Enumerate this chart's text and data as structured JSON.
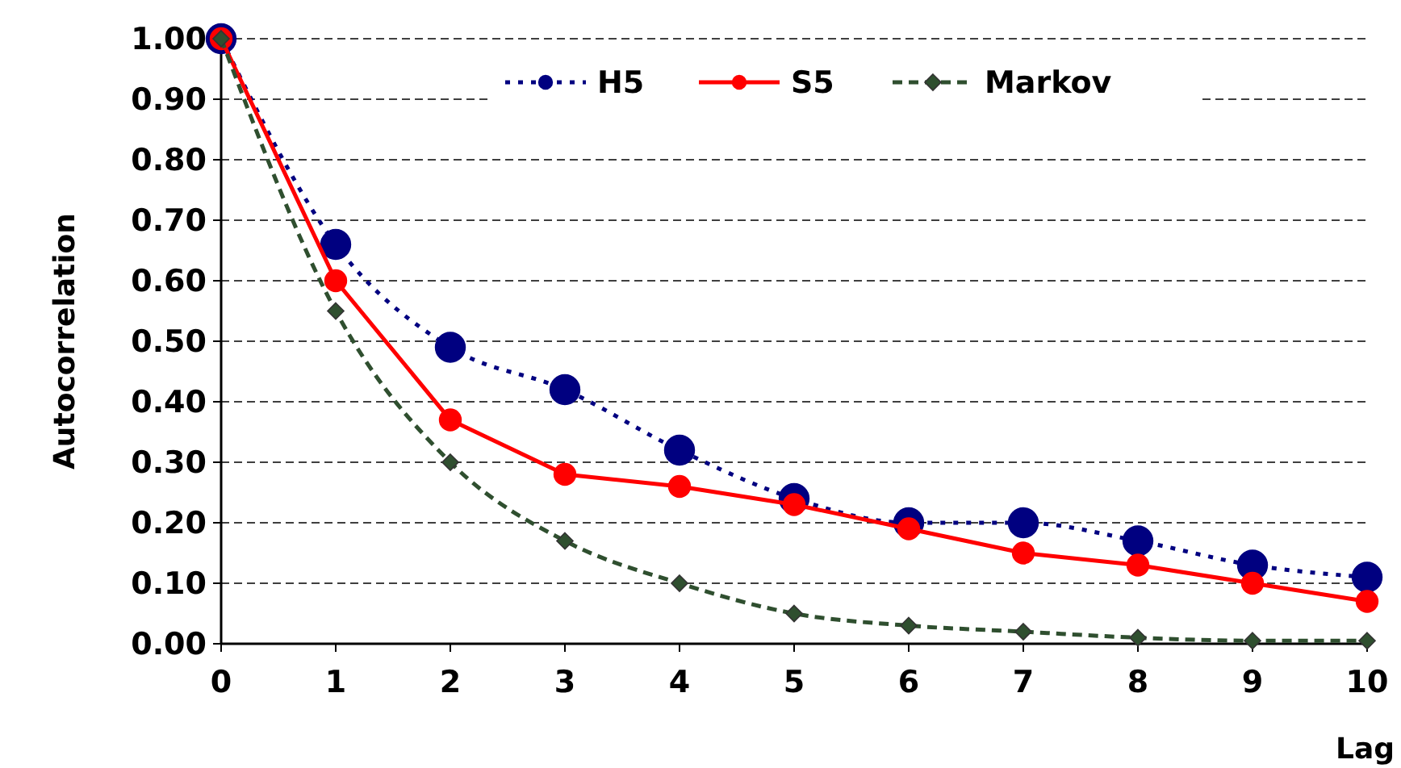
{
  "chart_data": {
    "type": "line",
    "xlabel": "Lag",
    "ylabel": "Autocorrelation",
    "x": [
      0,
      1,
      2,
      3,
      4,
      5,
      6,
      7,
      8,
      9,
      10
    ],
    "xlim": [
      0,
      10
    ],
    "xticks": [
      0,
      1,
      2,
      3,
      4,
      5,
      6,
      7,
      8,
      9,
      10
    ],
    "ylim": [
      0,
      1
    ],
    "yticks": [
      {
        "value": 0,
        "label": "0.00"
      },
      {
        "value": 0.1,
        "label": "0.10"
      },
      {
        "value": 0.2,
        "label": "0.20"
      },
      {
        "value": 0.3,
        "label": "0.30"
      },
      {
        "value": 0.4,
        "label": "0.40"
      },
      {
        "value": 0.5,
        "label": "0.50"
      },
      {
        "value": 0.6,
        "label": "0.60"
      },
      {
        "value": 0.7,
        "label": "0.70"
      },
      {
        "value": 0.8,
        "label": "0.80"
      },
      {
        "value": 0.9,
        "label": "0.90"
      },
      {
        "value": 1,
        "label": "1.00"
      }
    ],
    "grid": "y",
    "legend": "top",
    "series": [
      {
        "name": "H5",
        "color": "#000080",
        "marker": "circle",
        "line_style": "dotted",
        "values": [
          1,
          0.66,
          0.49,
          0.42,
          0.32,
          0.24,
          0.2,
          0.2,
          0.17,
          0.13,
          0.11
        ]
      },
      {
        "name": "S5",
        "color": "#ff0000",
        "marker": "circle",
        "line_style": "solid",
        "values": [
          1,
          0.6,
          0.37,
          0.28,
          0.26,
          0.23,
          0.19,
          0.15,
          0.13,
          0.1,
          0.07
        ]
      },
      {
        "name": "Markov",
        "color": "#2f4f2f",
        "marker": "diamond",
        "line_style": "dashed",
        "values": [
          1,
          0.55,
          0.3,
          0.17,
          0.1,
          0.05,
          0.03,
          0.02,
          0.01,
          0.005,
          0.005
        ]
      }
    ]
  }
}
